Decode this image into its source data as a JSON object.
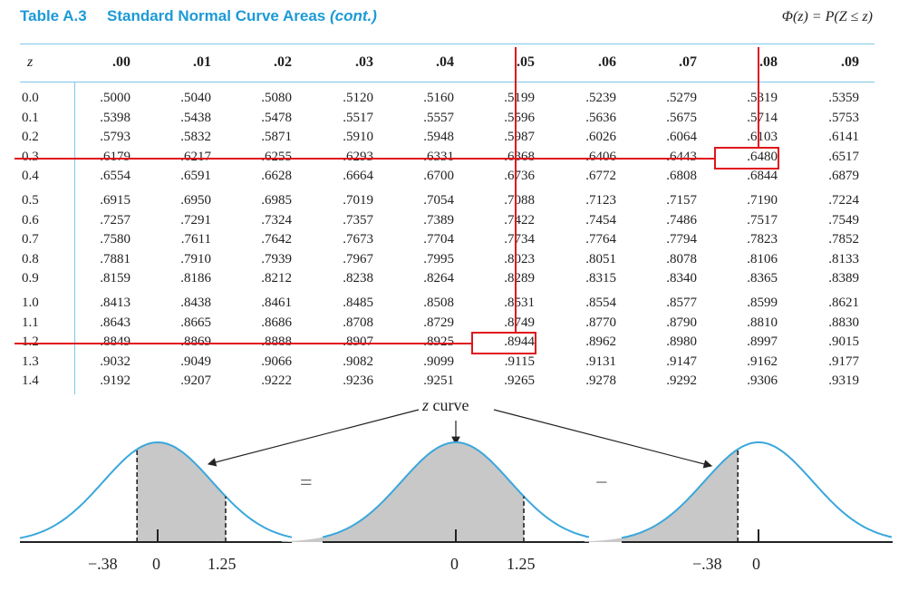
{
  "header": {
    "table_label": "Table A.3",
    "table_title": "Standard Normal Curve Areas",
    "table_title_cont": "(cont.)",
    "formula": "Φ(z) = P(Z ≤ z)"
  },
  "columns": [
    "z",
    ".00",
    ".01",
    ".02",
    ".03",
    ".04",
    ".05",
    ".06",
    ".07",
    ".08",
    ".09"
  ],
  "rows": [
    {
      "z": "0.0",
      "v": [
        ".5000",
        ".5040",
        ".5080",
        ".5120",
        ".5160",
        ".5199",
        ".5239",
        ".5279",
        ".5319",
        ".5359"
      ]
    },
    {
      "z": "0.1",
      "v": [
        ".5398",
        ".5438",
        ".5478",
        ".5517",
        ".5557",
        ".5596",
        ".5636",
        ".5675",
        ".5714",
        ".5753"
      ]
    },
    {
      "z": "0.2",
      "v": [
        ".5793",
        ".5832",
        ".5871",
        ".5910",
        ".5948",
        ".5987",
        ".6026",
        ".6064",
        ".6103",
        ".6141"
      ]
    },
    {
      "z": "0.3",
      "v": [
        ".6179",
        ".6217",
        ".6255",
        ".6293",
        ".6331",
        ".6368",
        ".6406",
        ".6443",
        ".6480",
        ".6517"
      ]
    },
    {
      "z": "0.4",
      "v": [
        ".6554",
        ".6591",
        ".6628",
        ".6664",
        ".6700",
        ".6736",
        ".6772",
        ".6808",
        ".6844",
        ".6879"
      ]
    },
    {
      "z": "0.5",
      "v": [
        ".6915",
        ".6950",
        ".6985",
        ".7019",
        ".7054",
        ".7088",
        ".7123",
        ".7157",
        ".7190",
        ".7224"
      ]
    },
    {
      "z": "0.6",
      "v": [
        ".7257",
        ".7291",
        ".7324",
        ".7357",
        ".7389",
        ".7422",
        ".7454",
        ".7486",
        ".7517",
        ".7549"
      ]
    },
    {
      "z": "0.7",
      "v": [
        ".7580",
        ".7611",
        ".7642",
        ".7673",
        ".7704",
        ".7734",
        ".7764",
        ".7794",
        ".7823",
        ".7852"
      ]
    },
    {
      "z": "0.8",
      "v": [
        ".7881",
        ".7910",
        ".7939",
        ".7967",
        ".7995",
        ".8023",
        ".8051",
        ".8078",
        ".8106",
        ".8133"
      ]
    },
    {
      "z": "0.9",
      "v": [
        ".8159",
        ".8186",
        ".8212",
        ".8238",
        ".8264",
        ".8289",
        ".8315",
        ".8340",
        ".8365",
        ".8389"
      ]
    },
    {
      "z": "1.0",
      "v": [
        ".8413",
        ".8438",
        ".8461",
        ".8485",
        ".8508",
        ".8531",
        ".8554",
        ".8577",
        ".8599",
        ".8621"
      ]
    },
    {
      "z": "1.1",
      "v": [
        ".8643",
        ".8665",
        ".8686",
        ".8708",
        ".8729",
        ".8749",
        ".8770",
        ".8790",
        ".8810",
        ".8830"
      ]
    },
    {
      "z": "1.2",
      "v": [
        ".8849",
        ".8869",
        ".8888",
        ".8907",
        ".8925",
        ".8944",
        ".8962",
        ".8980",
        ".8997",
        ".9015"
      ]
    },
    {
      "z": "1.3",
      "v": [
        ".9032",
        ".9049",
        ".9066",
        ".9082",
        ".9099",
        ".9115",
        ".9131",
        ".9147",
        ".9162",
        ".9177"
      ]
    },
    {
      "z": "1.4",
      "v": [
        ".9192",
        ".9207",
        ".9222",
        ".9236",
        ".9251",
        ".9265",
        ".9278",
        ".9292",
        ".9306",
        ".9319"
      ]
    }
  ],
  "highlights": [
    {
      "row": 3,
      "col": 8,
      "value": ".6480"
    },
    {
      "row": 12,
      "col": 5,
      "value": ".8944"
    }
  ],
  "diagram": {
    "curve_label_z": "z",
    "curve_label_text": "curve",
    "equals_sign": "=",
    "minus_sign": "−",
    "panel1_labels": [
      "−.38",
      "0",
      "1.25"
    ],
    "panel2_labels": [
      "0",
      "1.25"
    ],
    "panel3_labels": [
      "−.38",
      "0"
    ]
  },
  "colors": {
    "accent": "#1c9ad6",
    "highlight": "#e0141c",
    "curve": "#3aa7dc",
    "shade": "#c8c8c8"
  }
}
